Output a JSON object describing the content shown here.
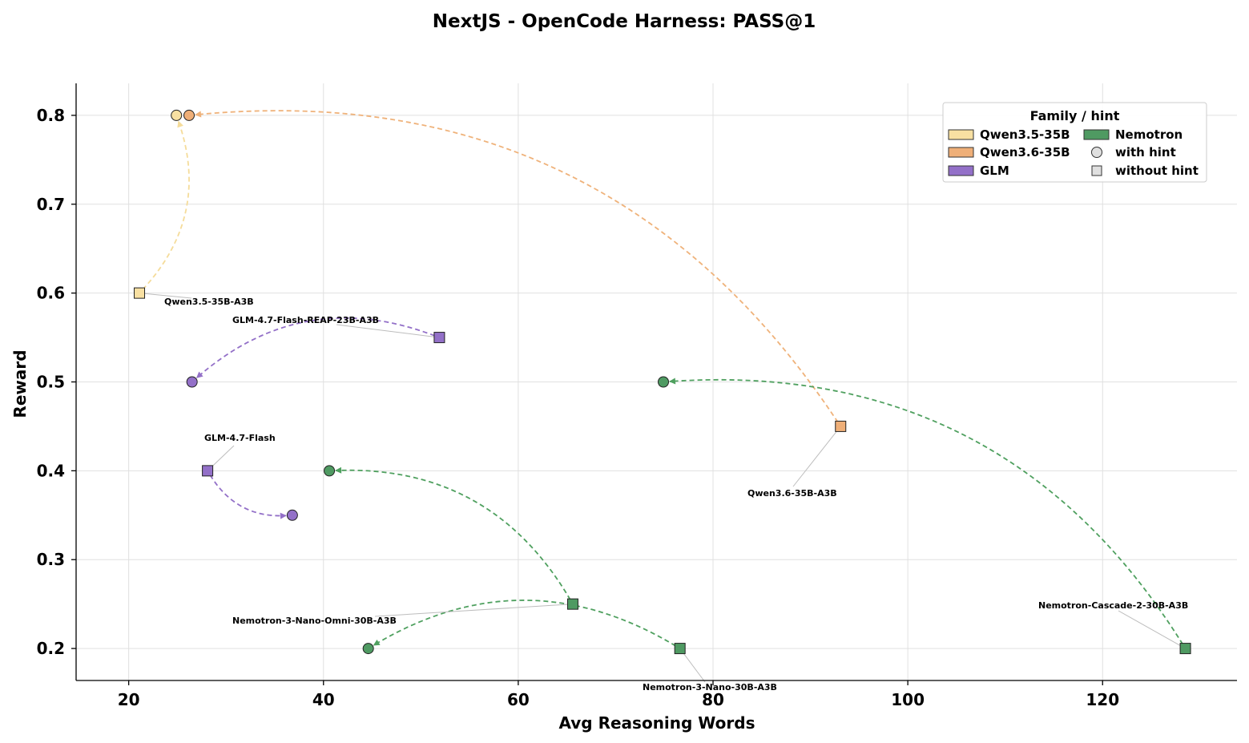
{
  "chart_data": {
    "type": "scatter",
    "title": "NextJS - OpenCode Harness: PASS@1",
    "xlabel": "Avg Reasoning Words",
    "ylabel": "Reward",
    "xlim": [
      14.6,
      133.8
    ],
    "ylim": [
      0.164,
      0.836
    ],
    "xticks": [
      20,
      40,
      60,
      80,
      100,
      120
    ],
    "yticks": [
      0.2,
      0.3,
      0.4,
      0.5,
      0.6,
      0.7,
      0.8
    ],
    "xtick_labels": [
      "20",
      "40",
      "60",
      "80",
      "100",
      "120"
    ],
    "ytick_labels": [
      "0.2",
      "0.3",
      "0.4",
      "0.5",
      "0.6",
      "0.7",
      "0.8"
    ],
    "grid": true,
    "legend": {
      "title": "Family / hint",
      "placement": "top-right",
      "entries": [
        {
          "label": "Qwen3.5-35B",
          "kind": "family",
          "color": "#f8e0a2"
        },
        {
          "label": "Qwen3.6-35B",
          "kind": "family",
          "color": "#efaf78"
        },
        {
          "label": "GLM",
          "kind": "family",
          "color": "#9370c8"
        },
        {
          "label": "Nemotron",
          "kind": "family",
          "color": "#4f9a62"
        },
        {
          "label": "with hint",
          "kind": "circle",
          "color": "#e0e0e0"
        },
        {
          "label": "without hint",
          "kind": "square",
          "color": "#e0e0e0"
        }
      ]
    },
    "families": {
      "Qwen3.5-35B": {
        "color": "#f8e0a2",
        "arrow": "#f5dc9a"
      },
      "Qwen3.6-35B": {
        "color": "#efaf78",
        "arrow": "#efb27a"
      },
      "GLM": {
        "color": "#9370c8",
        "arrow": "#9370c8"
      },
      "Nemotron": {
        "color": "#4f9a62",
        "arrow": "#4fa05f"
      }
    },
    "models": [
      {
        "name": "Qwen3.5-35B-A3B",
        "family": "Qwen3.5-35B",
        "without_hint": {
          "x": 21.1,
          "y": 0.6
        },
        "with_hint": {
          "x": 24.9,
          "y": 0.8
        }
      },
      {
        "name": "Qwen3.6-35B-A3B",
        "family": "Qwen3.6-35B",
        "without_hint": {
          "x": 93.1,
          "y": 0.45
        },
        "with_hint": {
          "x": 26.2,
          "y": 0.8
        }
      },
      {
        "name": "GLM-4.7-Flash-REAP-23B-A3B",
        "family": "GLM",
        "without_hint": {
          "x": 51.9,
          "y": 0.55
        },
        "with_hint": {
          "x": 26.5,
          "y": 0.5
        }
      },
      {
        "name": "GLM-4.7-Flash",
        "family": "GLM",
        "without_hint": {
          "x": 28.1,
          "y": 0.4
        },
        "with_hint": {
          "x": 36.8,
          "y": 0.35
        }
      },
      {
        "name": "Nemotron-3-Nano-Omni-30B-A3B",
        "family": "Nemotron",
        "without_hint": {
          "x": 65.6,
          "y": 0.25
        },
        "with_hint": {
          "x": 40.6,
          "y": 0.4
        }
      },
      {
        "name": "Nemotron-Cascade-2-30B-A3B",
        "family": "Nemotron",
        "without_hint": {
          "x": 128.5,
          "y": 0.2
        },
        "with_hint": {
          "x": 74.9,
          "y": 0.5
        }
      },
      {
        "name": "Nemotron-3-Nano-30B-A3B",
        "family": "Nemotron",
        "without_hint": {
          "x": 76.6,
          "y": 0.2
        },
        "with_hint": {
          "x": 44.6,
          "y": 0.2
        }
      }
    ]
  }
}
